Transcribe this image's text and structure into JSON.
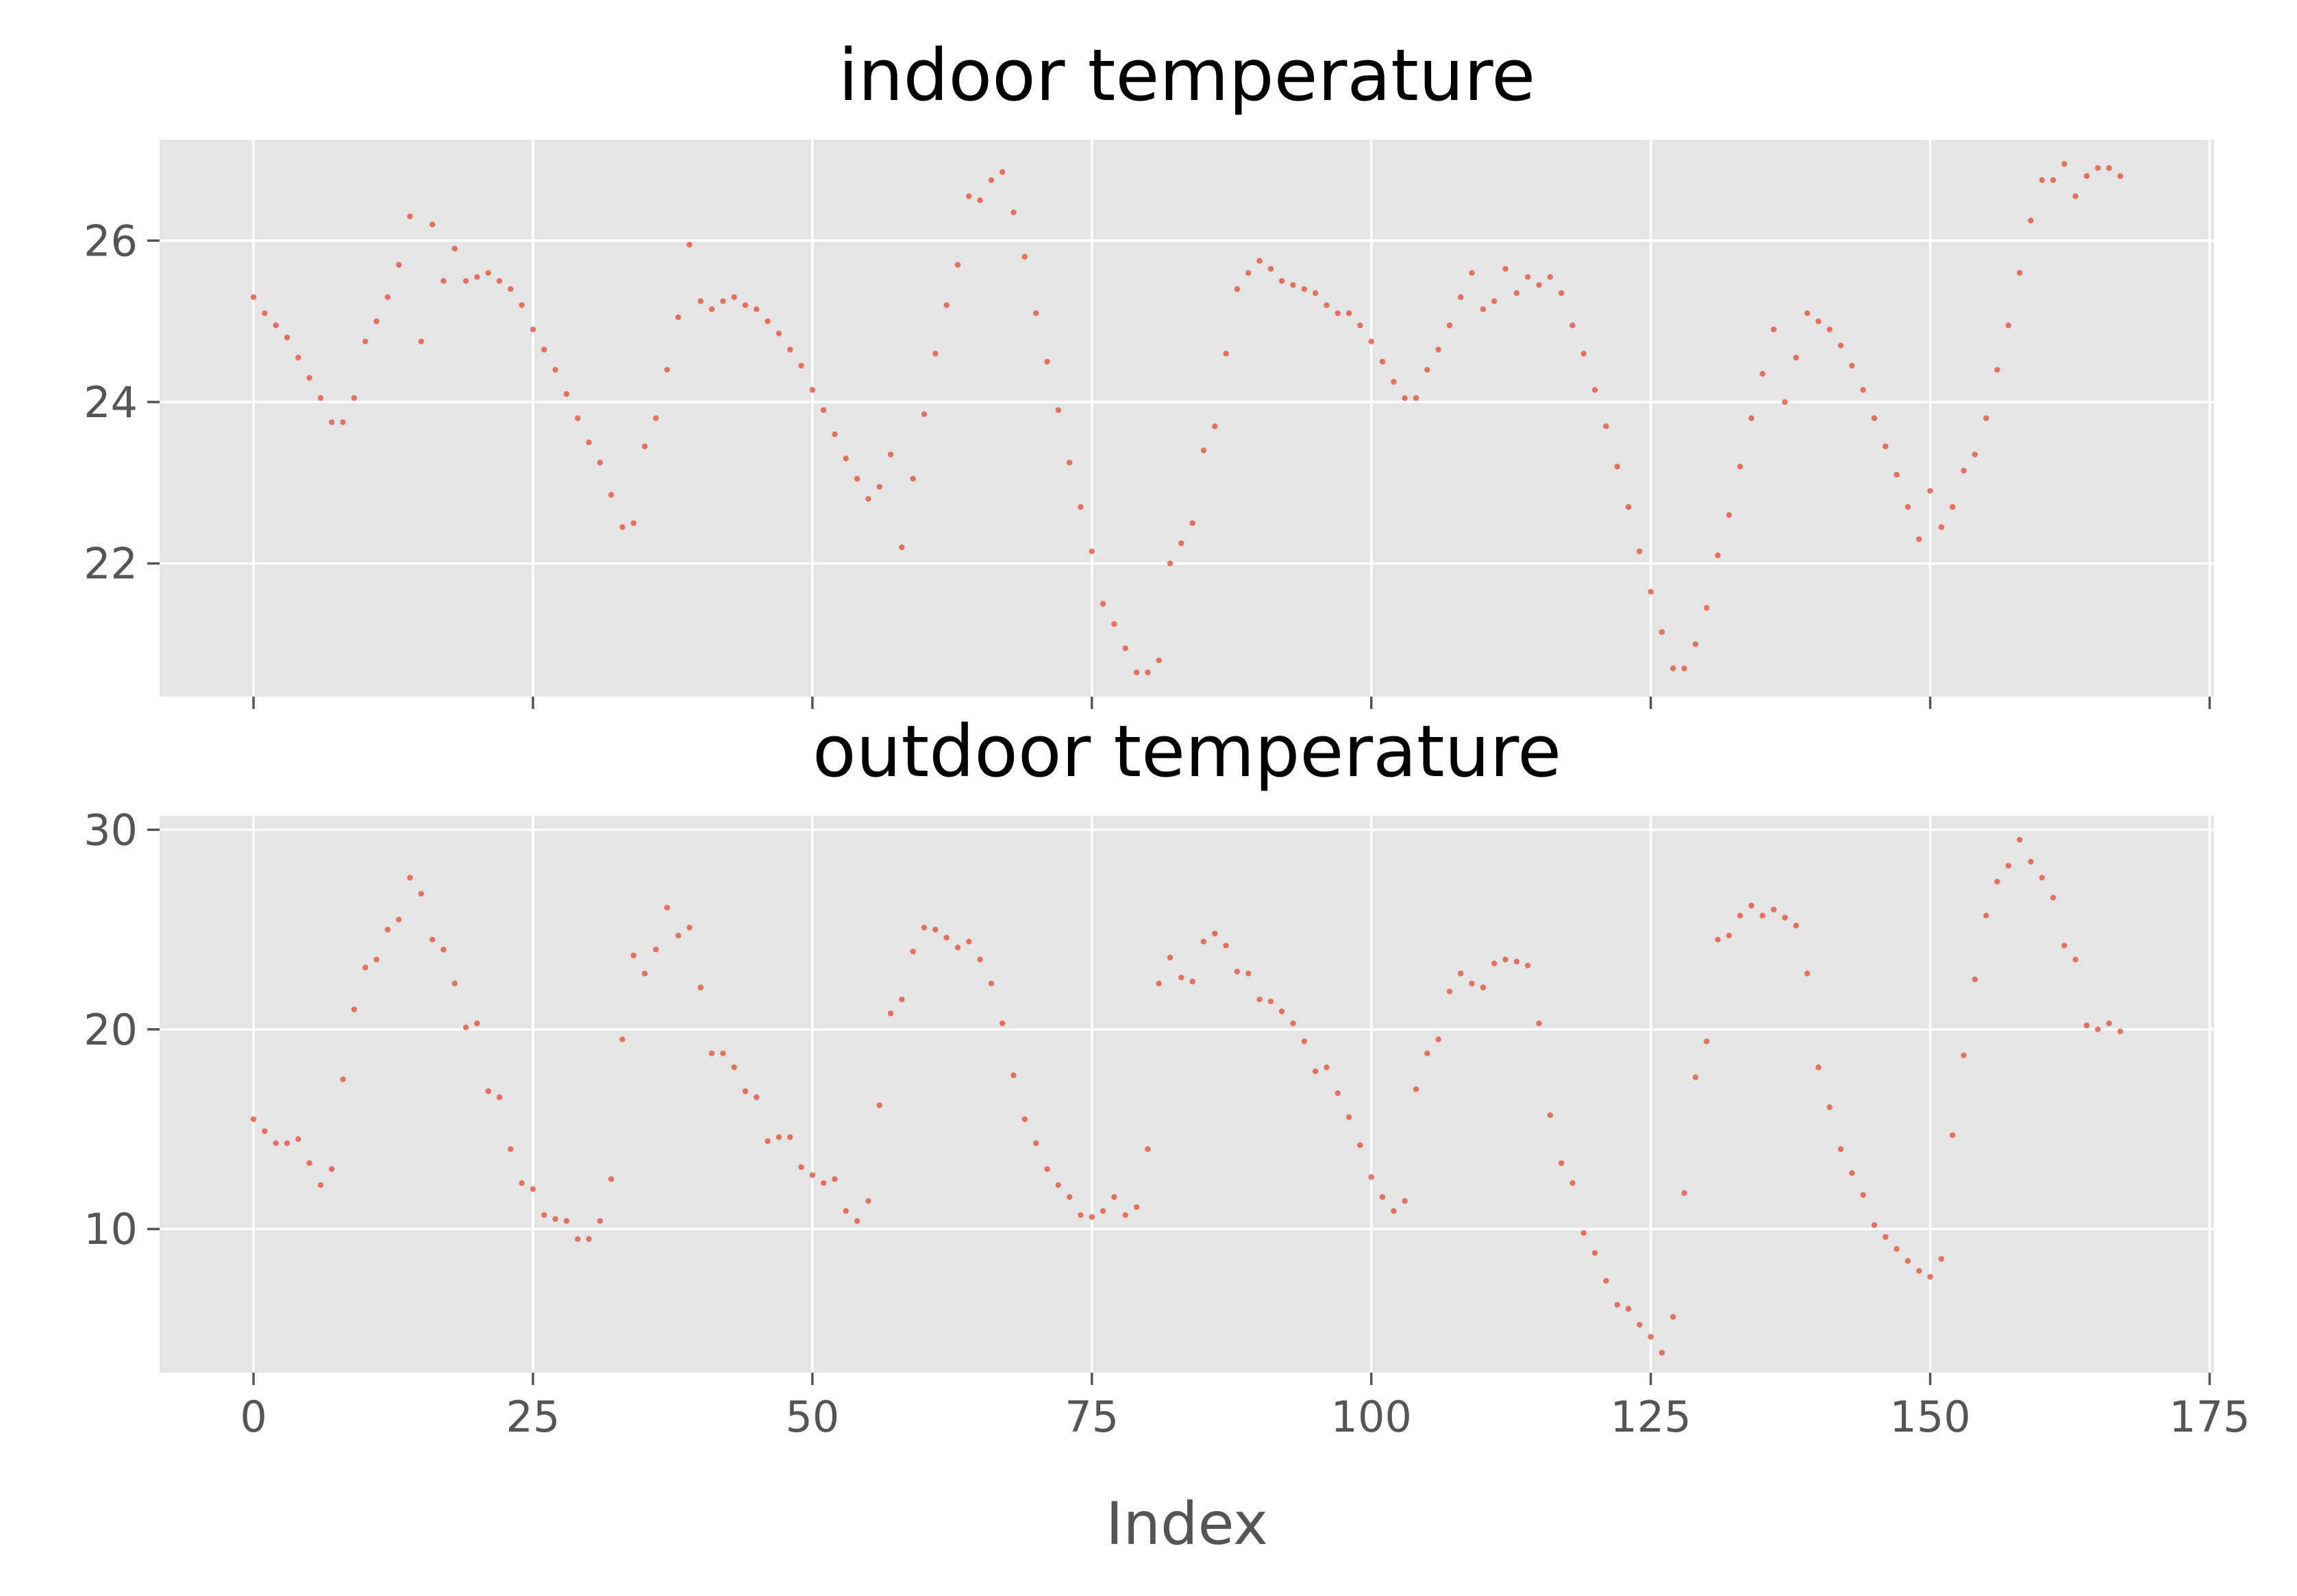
{
  "figure": {
    "background": "#ffffff",
    "panel_background": "#e5e5e5",
    "grid_color": "#ffffff",
    "marker_color": "#e24a33",
    "marker_alpha": 0.75,
    "style": "ggplot"
  },
  "chart_data": [
    {
      "type": "scatter",
      "title": "indoor temperature",
      "xlabel": "",
      "ylabel": "",
      "xlim": [
        -8.4,
        175.4
      ],
      "ylim": [
        20.35,
        27.25
      ],
      "xticks": [
        0,
        25,
        50,
        75,
        100,
        125,
        150,
        175
      ],
      "xtick_labels_visible": false,
      "yticks": [
        22,
        24,
        26
      ],
      "ytick_labels": [
        "22",
        "24",
        "26"
      ],
      "grid": true,
      "legend": "none",
      "x_start": 0,
      "x_step": 1,
      "values": [
        25.3,
        25.1,
        24.95,
        24.8,
        24.55,
        24.3,
        24.05,
        23.75,
        23.75,
        24.05,
        24.75,
        25.0,
        25.3,
        25.7,
        26.3,
        24.75,
        26.2,
        25.5,
        25.9,
        25.5,
        25.55,
        25.6,
        25.5,
        25.4,
        25.2,
        24.9,
        24.65,
        24.4,
        24.1,
        23.8,
        23.5,
        23.25,
        22.85,
        22.45,
        22.5,
        23.45,
        23.8,
        24.4,
        25.05,
        25.95,
        25.25,
        25.15,
        25.25,
        25.3,
        25.2,
        25.15,
        25.0,
        24.85,
        24.65,
        24.45,
        24.15,
        23.9,
        23.6,
        23.3,
        23.05,
        22.8,
        22.95,
        23.35,
        22.2,
        23.05,
        23.85,
        24.6,
        25.2,
        25.7,
        26.55,
        26.5,
        26.75,
        26.85,
        26.35,
        25.8,
        25.1,
        24.5,
        23.9,
        23.25,
        22.7,
        22.15,
        21.5,
        21.25,
        20.95,
        20.65,
        20.65,
        20.8,
        22.0,
        22.25,
        22.5,
        23.4,
        23.7,
        24.6,
        25.4,
        25.6,
        25.75,
        25.65,
        25.5,
        25.45,
        25.4,
        25.35,
        25.2,
        25.1,
        25.1,
        24.95,
        24.75,
        24.5,
        24.25,
        24.05,
        24.05,
        24.4,
        24.65,
        24.95,
        25.3,
        25.6,
        25.15,
        25.25,
        25.65,
        25.35,
        25.55,
        25.45,
        25.55,
        25.35,
        24.95,
        24.6,
        24.15,
        23.7,
        23.2,
        22.7,
        22.15,
        21.65,
        21.15,
        20.7,
        20.7,
        21.0,
        21.45,
        22.1,
        22.6,
        23.2,
        23.8,
        24.35,
        24.9,
        24.0,
        24.55,
        25.1,
        25.0,
        24.9,
        24.7,
        24.45,
        24.15,
        23.8,
        23.45,
        23.1,
        22.7,
        22.3,
        22.9,
        22.45,
        22.7,
        23.15,
        23.35,
        23.8,
        24.4,
        24.95,
        25.6,
        26.25,
        26.75,
        26.75,
        26.95,
        26.55,
        26.8,
        26.9,
        26.9,
        26.8
      ]
    },
    {
      "type": "scatter",
      "title": "outdoor temperature",
      "xlabel": "Index",
      "ylabel": "",
      "xlim": [
        -8.4,
        175.4
      ],
      "ylim": [
        2.8,
        30.7
      ],
      "xticks": [
        0,
        25,
        50,
        75,
        100,
        125,
        150,
        175
      ],
      "xtick_labels": [
        "0",
        "25",
        "50",
        "75",
        "100",
        "125",
        "150",
        "175"
      ],
      "yticks": [
        10,
        20,
        30
      ],
      "ytick_labels": [
        "10",
        "20",
        "30"
      ],
      "grid": true,
      "legend": "none",
      "x_start": 0,
      "x_step": 1,
      "values": [
        15.5,
        14.9,
        14.3,
        14.3,
        14.5,
        13.3,
        12.2,
        13.0,
        17.5,
        21.0,
        23.1,
        23.5,
        25.0,
        25.5,
        27.6,
        26.8,
        24.5,
        24.0,
        22.3,
        20.1,
        20.3,
        16.9,
        16.6,
        14.0,
        12.3,
        12.0,
        10.7,
        10.5,
        10.4,
        9.5,
        9.5,
        10.4,
        12.5,
        19.5,
        23.7,
        22.8,
        24.0,
        26.1,
        24.7,
        25.1,
        22.1,
        18.8,
        18.8,
        18.1,
        16.9,
        16.6,
        14.4,
        14.6,
        14.6,
        13.1,
        12.7,
        12.3,
        12.5,
        10.9,
        10.4,
        11.4,
        16.2,
        20.8,
        21.5,
        23.9,
        25.1,
        25.0,
        24.6,
        24.1,
        24.4,
        23.5,
        22.3,
        20.3,
        17.7,
        15.5,
        14.3,
        13.0,
        12.2,
        11.6,
        10.7,
        10.6,
        10.9,
        11.6,
        10.7,
        11.1,
        14.0,
        22.3,
        23.6,
        22.6,
        22.4,
        24.4,
        24.8,
        24.2,
        22.9,
        22.8,
        21.5,
        21.4,
        20.9,
        20.3,
        19.4,
        17.9,
        18.1,
        16.8,
        15.6,
        14.2,
        12.6,
        11.6,
        10.9,
        11.4,
        17.0,
        18.8,
        19.5,
        21.9,
        22.8,
        22.3,
        22.1,
        23.3,
        23.5,
        23.4,
        23.2,
        20.3,
        15.7,
        13.3,
        12.3,
        9.8,
        8.8,
        7.4,
        6.2,
        6.0,
        5.2,
        4.6,
        3.8,
        5.6,
        11.8,
        17.6,
        19.4,
        24.5,
        24.7,
        25.7,
        26.2,
        25.7,
        26.0,
        25.6,
        25.2,
        22.8,
        18.1,
        16.1,
        14.0,
        12.8,
        11.7,
        10.2,
        9.6,
        9.0,
        8.4,
        7.9,
        7.6,
        8.5,
        14.7,
        18.7,
        22.5,
        25.7,
        27.4,
        28.2,
        29.5,
        28.4,
        27.6,
        26.6,
        24.2,
        23.5,
        20.2,
        20.0,
        20.3,
        19.9
      ]
    }
  ]
}
